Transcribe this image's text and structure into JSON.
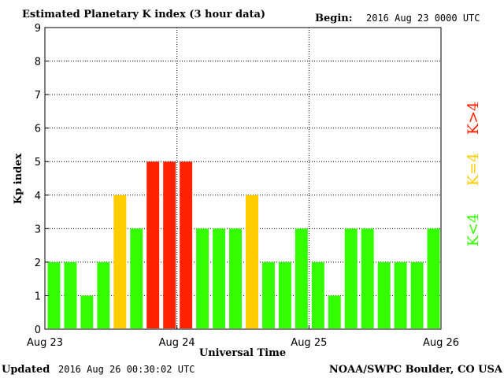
{
  "header": {
    "title": "Estimated Planetary K index (3 hour data)",
    "begin_label": "Begin:",
    "begin_value": "2016 Aug 23 0000 UTC"
  },
  "footer": {
    "updated_label": "Updated",
    "updated_value": "2016 Aug 26 00:30:02 UTC",
    "source": "NOAA/SWPC Boulder, CO USA"
  },
  "legend": {
    "high": "K>4",
    "mid": "K=4",
    "low": "K<4"
  },
  "colors": {
    "low": "#33ff00",
    "mid": "#ffcc00",
    "high": "#ff2200"
  },
  "chart_data": {
    "type": "bar",
    "title": "Estimated Planetary K index (3 hour data)",
    "xlabel": "Universal Time",
    "ylabel": "Kp index",
    "ylim": [
      0,
      9
    ],
    "yticks": [
      0,
      1,
      2,
      3,
      4,
      5,
      6,
      7,
      8,
      9
    ],
    "x_tick_labels": [
      "Aug 23",
      "Aug 24",
      "Aug 25",
      "Aug 26"
    ],
    "grid": true,
    "values": [
      2,
      2,
      1,
      2,
      4,
      3,
      5,
      5,
      5,
      3,
      3,
      3,
      4,
      2,
      2,
      3,
      2,
      1,
      3,
      3,
      2,
      2,
      2,
      3
    ]
  }
}
